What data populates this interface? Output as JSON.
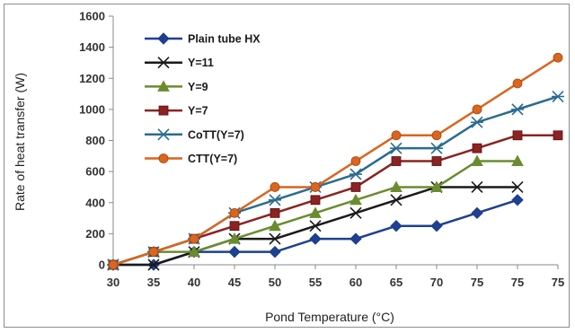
{
  "chart_data": {
    "type": "line",
    "title": "",
    "xlabel": "Pond Temperature (°C)",
    "ylabel": "Rate of heat transfer (W)",
    "categories": [
      "30",
      "35",
      "40",
      "45",
      "50",
      "55",
      "60",
      "65",
      "70",
      "75",
      "75",
      "75"
    ],
    "ylim": [
      0,
      1600
    ],
    "yticks": [
      0,
      200,
      400,
      600,
      800,
      1000,
      1200,
      1400,
      1600
    ],
    "grid": false,
    "legend_position": "top-left",
    "series": [
      {
        "name": "Plain tube HX",
        "color": "#1f3f8f",
        "marker": "diamond",
        "values": [
          0,
          0,
          83,
          83,
          83,
          167,
          167,
          250,
          250,
          333,
          417,
          null
        ]
      },
      {
        "name": "Y=11",
        "color": "#1a1a1a",
        "marker": "x",
        "values": [
          0,
          0,
          83,
          167,
          167,
          250,
          333,
          417,
          500,
          500,
          500,
          null
        ]
      },
      {
        "name": "Y=9",
        "color": "#6a8c2f",
        "marker": "triangle",
        "values": [
          0,
          83,
          83,
          167,
          250,
          333,
          417,
          500,
          500,
          667,
          667,
          null
        ]
      },
      {
        "name": "Y=7",
        "color": "#8b2323",
        "marker": "square",
        "values": [
          0,
          83,
          167,
          250,
          333,
          417,
          500,
          667,
          667,
          750,
          833,
          833
        ]
      },
      {
        "name": "CoTT(Y=7)",
        "color": "#2b6c8f",
        "marker": "star",
        "values": [
          0,
          83,
          167,
          333,
          417,
          500,
          583,
          750,
          750,
          917,
          1000,
          1083
        ]
      },
      {
        "name": "CTT(Y=7)",
        "color": "#d9661e",
        "marker": "circle",
        "values": [
          0,
          83,
          167,
          333,
          500,
          500,
          667,
          833,
          833,
          1000,
          1167,
          1333
        ]
      }
    ]
  }
}
